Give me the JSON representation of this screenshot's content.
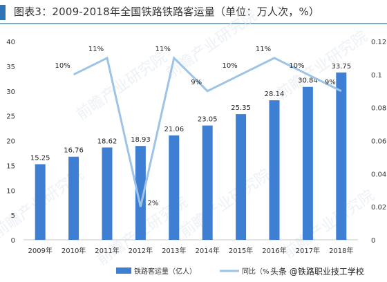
{
  "title": "图表3：2009-2018年全国铁路铁路客运量（单位：万人次，%）",
  "colors": {
    "bar": "#3f7fd3",
    "line": "#9dc3e6",
    "title_bar": "#2e75b6",
    "axis_text": "#333333"
  },
  "chart_data": {
    "type": "bar+line",
    "categories": [
      "2009年",
      "2010年",
      "2011年",
      "2012年",
      "2013年",
      "2014年",
      "2015年",
      "2016年",
      "2017年",
      "2018年"
    ],
    "series": [
      {
        "name": "铁路客运量（亿人）",
        "type": "bar",
        "axis": "left",
        "values": [
          15.25,
          16.76,
          18.62,
          18.93,
          21.06,
          23.05,
          25.35,
          28.14,
          30.84,
          33.75
        ],
        "labels": [
          "15.25",
          "16.76",
          "18.62",
          "18.93",
          "21.06",
          "23.05",
          "25.35",
          "28.14",
          "30.84",
          "33.75"
        ]
      },
      {
        "name": "同比（%",
        "type": "line",
        "axis": "right",
        "values": [
          null,
          0.1,
          0.11,
          0.02,
          0.11,
          0.09,
          0.1,
          0.11,
          0.1,
          0.09
        ],
        "labels": [
          null,
          "10%",
          "11%",
          "2%",
          "11%",
          "9%",
          "10%",
          "11%",
          "10%",
          "9%"
        ]
      }
    ],
    "ylim_left": [
      0,
      40
    ],
    "yticks_left": [
      "0",
      "5",
      "10",
      "15",
      "20",
      "25",
      "30",
      "35",
      "40"
    ],
    "ylim_right": [
      0,
      0.12
    ],
    "yticks_right": [
      "0",
      "0.02",
      "0.04",
      "0.06",
      "0.08",
      "0.1",
      "0.12"
    ],
    "legend_position": "bottom",
    "grid": false
  },
  "watermarks": [
    "前瞻产业研究院"
  ],
  "footer_credit": "头条 @铁路职业技工学校"
}
